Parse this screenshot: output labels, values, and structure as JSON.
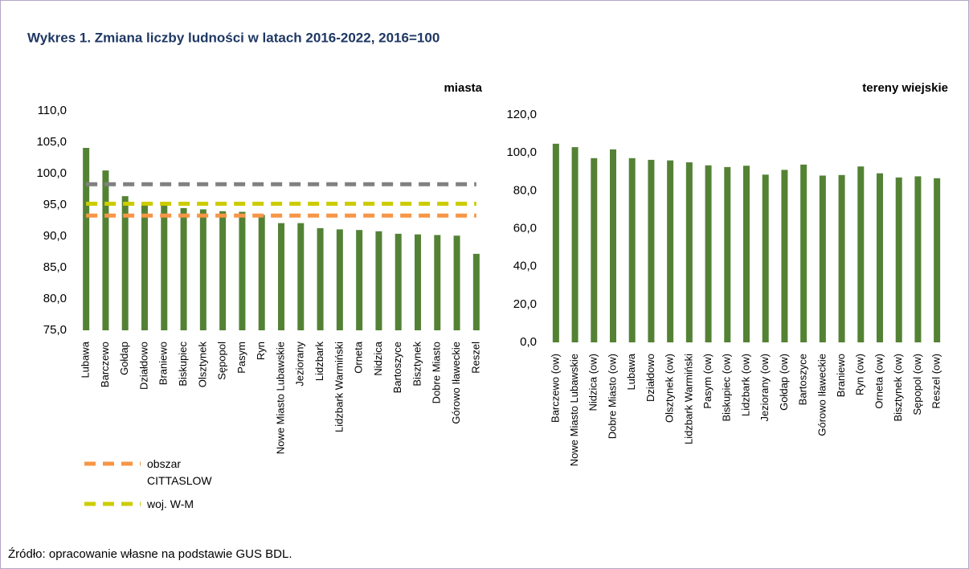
{
  "title": "Wykres 1. Zmiana liczby ludności w latach 2016-2022, 2016=100",
  "source": "Źródło: opracowanie własne na podstawie GUS BDL.",
  "chart_data": [
    {
      "type": "bar",
      "subtitle": "miasta",
      "categories": [
        "Lubawa",
        "Barczewo",
        "Gołdap",
        "Działdowo",
        "Braniewo",
        "Biskupiec",
        "Olsztynek",
        "Sępopol",
        "Pasym",
        "Ryn",
        "Nowe Miasto Lubawskie",
        "Jeziorany",
        "Lidzbark",
        "Lidzbark Warmiński",
        "Orneta",
        "Nidzica",
        "Bartoszyce",
        "Bisztynek",
        "Dobre Miasto",
        "Górowo Iławeckie",
        "Reszel"
      ],
      "series": [
        {
          "type": "bar",
          "color": "#548235",
          "values": [
            104.1,
            100.5,
            96.4,
            95.3,
            95.0,
            94.5,
            94.3,
            94.0,
            93.9,
            93.4,
            92.1,
            92.1,
            91.3,
            91.1,
            91.0,
            90.8,
            90.4,
            90.3,
            90.2,
            90.1,
            87.2
          ]
        },
        {
          "type": "line",
          "color": "#808080",
          "values": [
            98.3,
            98.3,
            98.3,
            98.3,
            98.3,
            98.3,
            98.3,
            98.3,
            98.3,
            98.3,
            98.3,
            98.3,
            98.3,
            98.3,
            98.3,
            98.3,
            98.3,
            98.3,
            98.3,
            98.3,
            98.3
          ]
        },
        {
          "type": "line",
          "name": "woj. W-M",
          "color": "#cccc00",
          "values": [
            95.2,
            95.2,
            95.2,
            95.2,
            95.2,
            95.2,
            95.2,
            95.2,
            95.2,
            95.2,
            95.2,
            95.2,
            95.2,
            95.2,
            95.2,
            95.2,
            95.2,
            95.2,
            95.2,
            95.2,
            95.2
          ]
        },
        {
          "type": "line",
          "name": "obszar CITTASLOW",
          "color": "#f79646",
          "values": [
            93.3,
            93.3,
            93.3,
            93.3,
            93.3,
            93.3,
            93.3,
            93.3,
            93.3,
            93.3,
            93.3,
            93.3,
            93.3,
            93.3,
            93.3,
            93.3,
            93.3,
            93.3,
            93.3,
            93.3,
            93.3
          ]
        }
      ],
      "ylim": [
        75,
        110
      ],
      "yticks": [
        {
          "value": 75,
          "label": "75,0"
        },
        {
          "value": 80,
          "label": "80,0"
        },
        {
          "value": 85,
          "label": "85,0"
        },
        {
          "value": 90,
          "label": "90,0"
        },
        {
          "value": 95,
          "label": "95,0"
        },
        {
          "value": 100,
          "label": "100,0"
        },
        {
          "value": 105,
          "label": "105,0"
        },
        {
          "value": 110,
          "label": "110,0"
        }
      ]
    },
    {
      "type": "bar",
      "subtitle": "tereny wiejskie",
      "categories": [
        "Barczewo (ow)",
        "Nowe Miasto Lubawskie",
        "Nidzica (ow)",
        "Dobre Miasto (ow)",
        "Lubawa",
        "Działdowo",
        "Olsztynek (ow)",
        "Lidzbark Warmiński",
        "Pasym (ow)",
        "Biskupiec (ow)",
        "Lidzbark (ow)",
        "Jeziorany (ow)",
        "Gołdap (ow)",
        "Bartoszyce",
        "Górowo Iławeckie",
        "Braniewo",
        "Ryn (ow)",
        "Orneta (ow)",
        "Bisztynek (ow)",
        "Sępopol (ow)",
        "Reszel (ow)"
      ],
      "series": [
        {
          "type": "bar",
          "color": "#548235",
          "values": [
            104.8,
            103.0,
            97.2,
            101.8,
            97.2,
            96.3,
            96.0,
            95.0,
            93.4,
            92.5,
            93.2,
            88.5,
            91.0,
            93.8,
            88.0,
            88.3,
            92.8,
            89.2,
            87.0,
            87.6,
            86.6
          ]
        }
      ],
      "ylim": [
        0,
        120
      ],
      "yticks": [
        {
          "value": 0,
          "label": "0,0"
        },
        {
          "value": 20,
          "label": "20,0"
        },
        {
          "value": 40,
          "label": "40,0"
        },
        {
          "value": 60,
          "label": "60,0"
        },
        {
          "value": 80,
          "label": "80,0"
        },
        {
          "value": 100,
          "label": "100,0"
        },
        {
          "value": 120,
          "label": "120,0"
        }
      ]
    }
  ]
}
